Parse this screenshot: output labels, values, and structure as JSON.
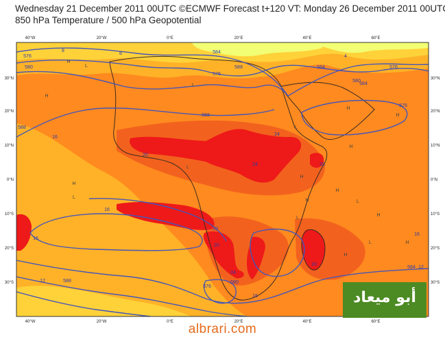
{
  "header": {
    "line1": "Wednesday 21 December 2011 00UTC ©ECMWF Forecast t+120 VT: Monday 26 December 2011 00UTC",
    "line2": "850 hPa Temperature / 500 hPa Geopotential"
  },
  "axes": {
    "lon_labels": [
      "40°W",
      "20°W",
      "0°E",
      "20°E",
      "40°E",
      "60°E"
    ],
    "lat_labels": [
      "30°N",
      "20°N",
      "10°N",
      "0°N",
      "10°S",
      "20°S",
      "30°S"
    ]
  },
  "colors": {
    "cool": "#f2ff74",
    "mild": "#ffd23a",
    "warm": "#ffb227",
    "hot": "#ff8a1f",
    "hotter": "#f2621e",
    "hottest": "#ee1919",
    "contour": "#4656b8",
    "coast": "#3a2a22"
  },
  "contour_labels": [
    "576",
    "580",
    "584",
    "588",
    "576",
    "580",
    "576",
    "584",
    "576",
    "588",
    "588",
    "588",
    "580",
    "576",
    "584",
    "584"
  ],
  "temp_labels": [
    "16",
    "20",
    "24",
    "24",
    "20",
    "16",
    "20",
    "20",
    "24",
    "20",
    "16",
    "12",
    "16",
    "12",
    "16",
    "8",
    "4",
    "8"
  ],
  "pressure_marks": [
    "H",
    "L",
    "L",
    "H",
    "H",
    "L",
    "H",
    "H",
    "H",
    "L",
    "L",
    "H",
    "H",
    "H",
    "H",
    "L",
    "H",
    "L",
    "H",
    "L"
  ],
  "watermark": {
    "site": "albrari.com",
    "logo_text": "أبو ميعاد"
  }
}
